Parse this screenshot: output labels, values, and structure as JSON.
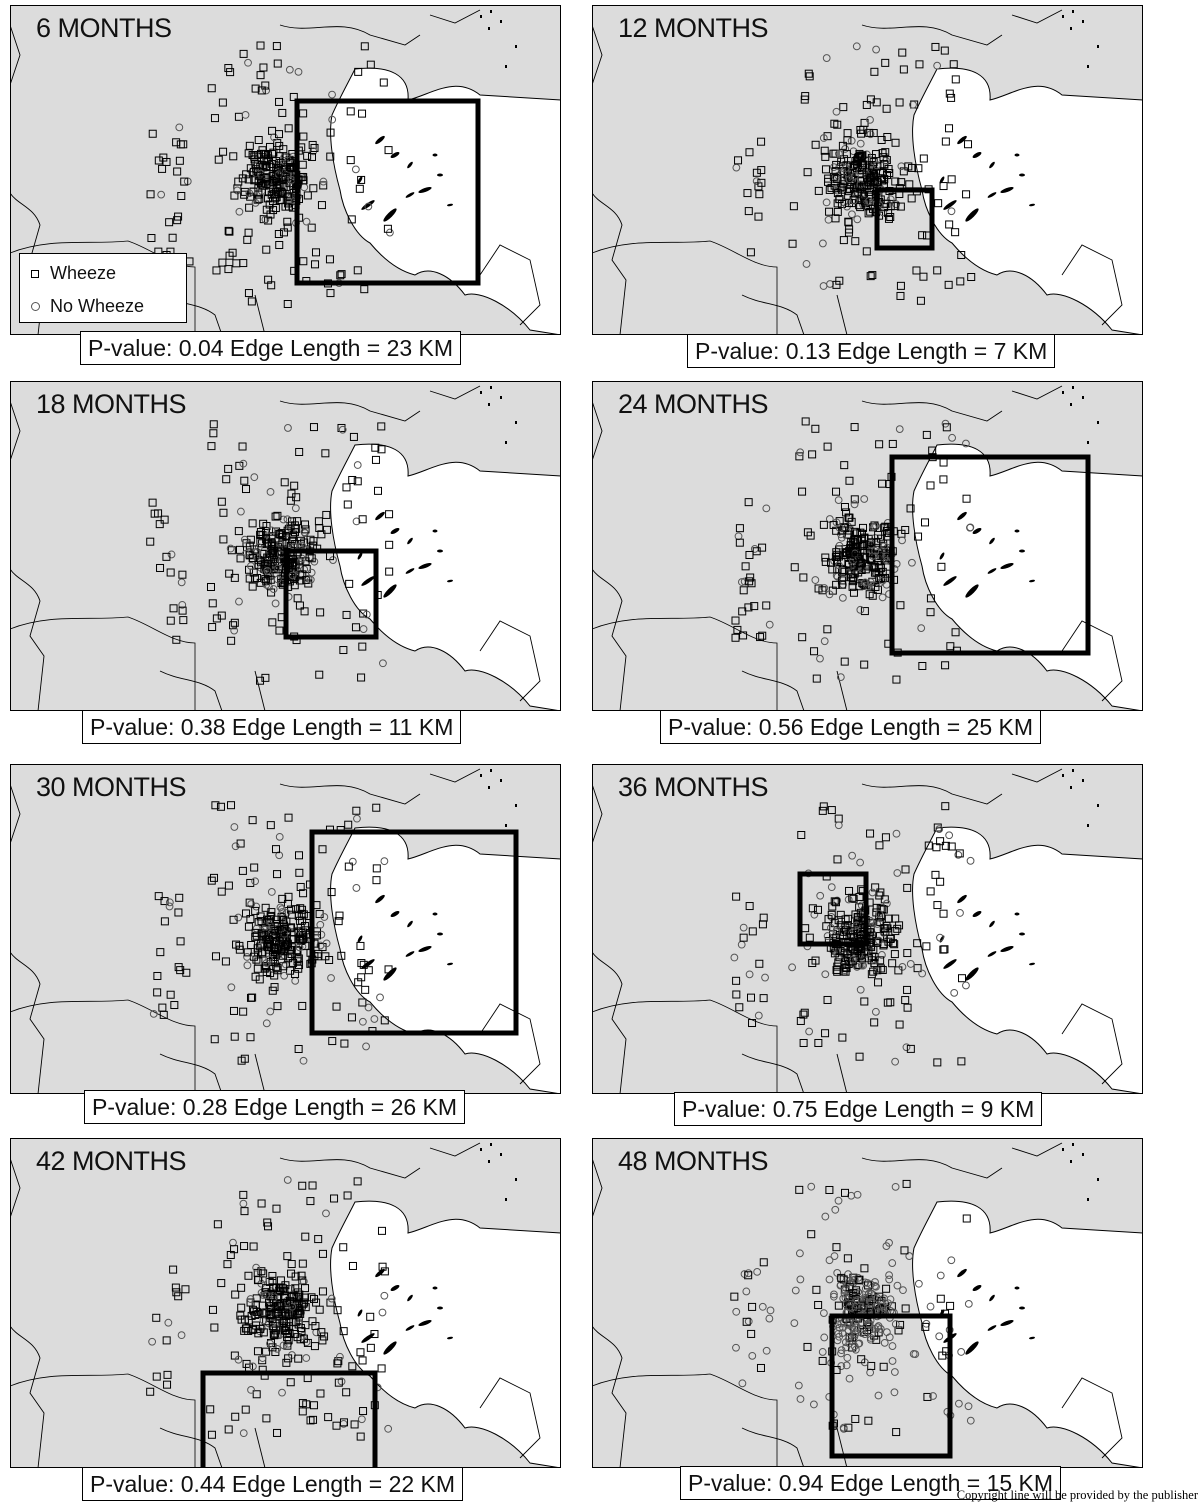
{
  "panels": [
    {
      "title": "6 MONTHS",
      "caption": "P-value: 0.04  Edge Length = 23 KM"
    },
    {
      "title": "12 MONTHS",
      "caption": "P-value: 0.13  Edge Length = 7 KM"
    },
    {
      "title": "18 MONTHS",
      "caption": "P-value: 0.38  Edge Length = 11 KM"
    },
    {
      "title": "24 MONTHS",
      "caption": "P-value: 0.56  Edge Length = 25 KM"
    },
    {
      "title": "30 MONTHS",
      "caption": "P-value: 0.28  Edge Length = 26 KM"
    },
    {
      "title": "36 MONTHS",
      "caption": "P-value: 0.75  Edge Length = 9 KM"
    },
    {
      "title": "42 MONTHS",
      "caption": "P-value: 0.44  Edge Length = 22 KM"
    },
    {
      "title": "48 MONTHS",
      "caption": "P-value: 0.94  Edge Length = 15 KM"
    }
  ],
  "legend": {
    "wheeze": "Wheeze",
    "no_wheeze": "No Wheeze"
  },
  "footer": "Copyright line will be provided by the publisher",
  "colors": {
    "land": "#dcdcdc",
    "water": "#ffffff",
    "boundary": "#000000",
    "wheeze_marker": "#000000",
    "no_wheeze_marker": "#555555"
  }
}
